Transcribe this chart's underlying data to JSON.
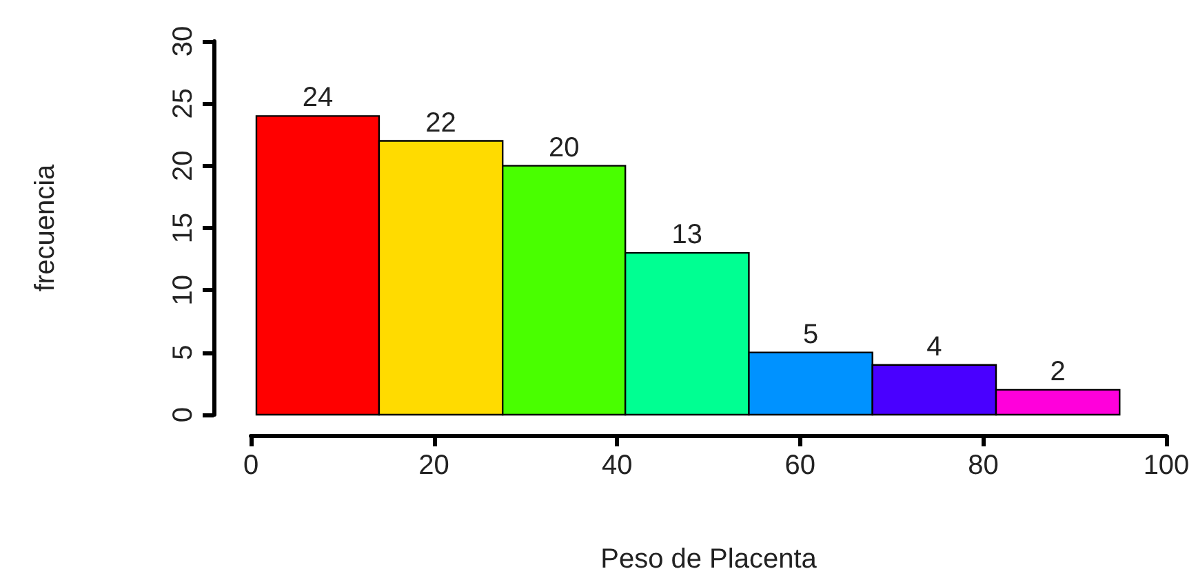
{
  "chart_data": {
    "type": "histogram",
    "xlabel": "Peso de Placenta",
    "ylabel": "frecuencia",
    "bins": [
      0.6,
      14,
      27.5,
      40.9,
      54.4,
      67.9,
      81.4,
      94.9
    ],
    "values": [
      24,
      22,
      20,
      13,
      5,
      4,
      2
    ],
    "colors": [
      "#ff0000",
      "#ffdb00",
      "#49ff00",
      "#00ff92",
      "#0092ff",
      "#4900ff",
      "#ff00db"
    ],
    "data_labels": true,
    "xlim": [
      0,
      100
    ],
    "xticks": [
      0,
      20,
      40,
      60,
      80,
      100
    ],
    "ylim": [
      0,
      30
    ],
    "yticks": [
      0,
      5,
      10,
      15,
      20,
      25,
      30
    ],
    "grid": false
  }
}
